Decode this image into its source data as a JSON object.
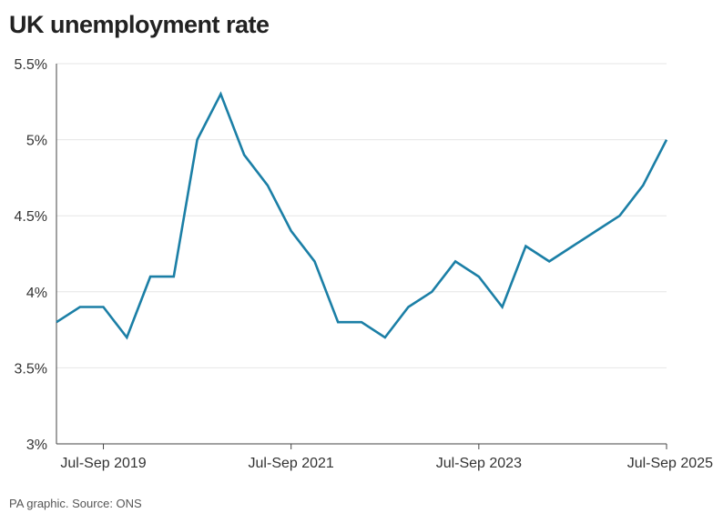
{
  "title": "UK unemployment rate",
  "source": "PA graphic. Source: ONS",
  "colors": {
    "line": "#1b7fa6",
    "grid": "#e6e6e6",
    "axis": "#444444"
  },
  "chart_data": {
    "type": "line",
    "title": "UK unemployment rate",
    "xlabel": "",
    "ylabel": "",
    "x": [
      "Jan-Mar 2019",
      "Apr-Jun 2019",
      "Jul-Sep 2019",
      "Oct-Dec 2019",
      "Jan-Mar 2020",
      "Apr-Jun 2020",
      "Jul-Sep 2020",
      "Oct-Dec 2020",
      "Jan-Mar 2021",
      "Apr-Jun 2021",
      "Jul-Sep 2021",
      "Oct-Dec 2021",
      "Jan-Mar 2022",
      "Apr-Jun 2022",
      "Jul-Sep 2022",
      "Oct-Dec 2022",
      "Jan-Mar 2023",
      "Apr-Jun 2023",
      "Jul-Sep 2023",
      "Oct-Dec 2023",
      "Jan-Mar 2024",
      "Apr-Jun 2024",
      "Jul-Sep 2024",
      "Oct-Dec 2024",
      "Jan-Mar 2025",
      "Apr-Jun 2025",
      "Jul-Sep 2025"
    ],
    "series": [
      {
        "values": [
          3.8,
          3.9,
          3.9,
          3.7,
          4.1,
          4.1,
          5.0,
          5.3,
          4.9,
          4.7,
          4.4,
          4.2,
          3.8,
          3.8,
          3.7,
          3.9,
          4.0,
          4.2,
          4.1,
          3.9,
          4.3,
          4.2,
          4.3,
          4.4,
          4.5,
          4.7,
          5.0
        ]
      }
    ],
    "ylim": [
      3,
      5.5
    ],
    "yticks": [
      3,
      3.5,
      4,
      4.5,
      5,
      5.5
    ],
    "ytick_labels": [
      "3%",
      "3.5%",
      "4%",
      "4.5%",
      "5%",
      "5.5%"
    ],
    "xticks": [
      "Jul-Sep 2019",
      "Jul-Sep 2021",
      "Jul-Sep 2023",
      "Jul-Sep 2025"
    ],
    "grid": true,
    "legend": "none"
  }
}
